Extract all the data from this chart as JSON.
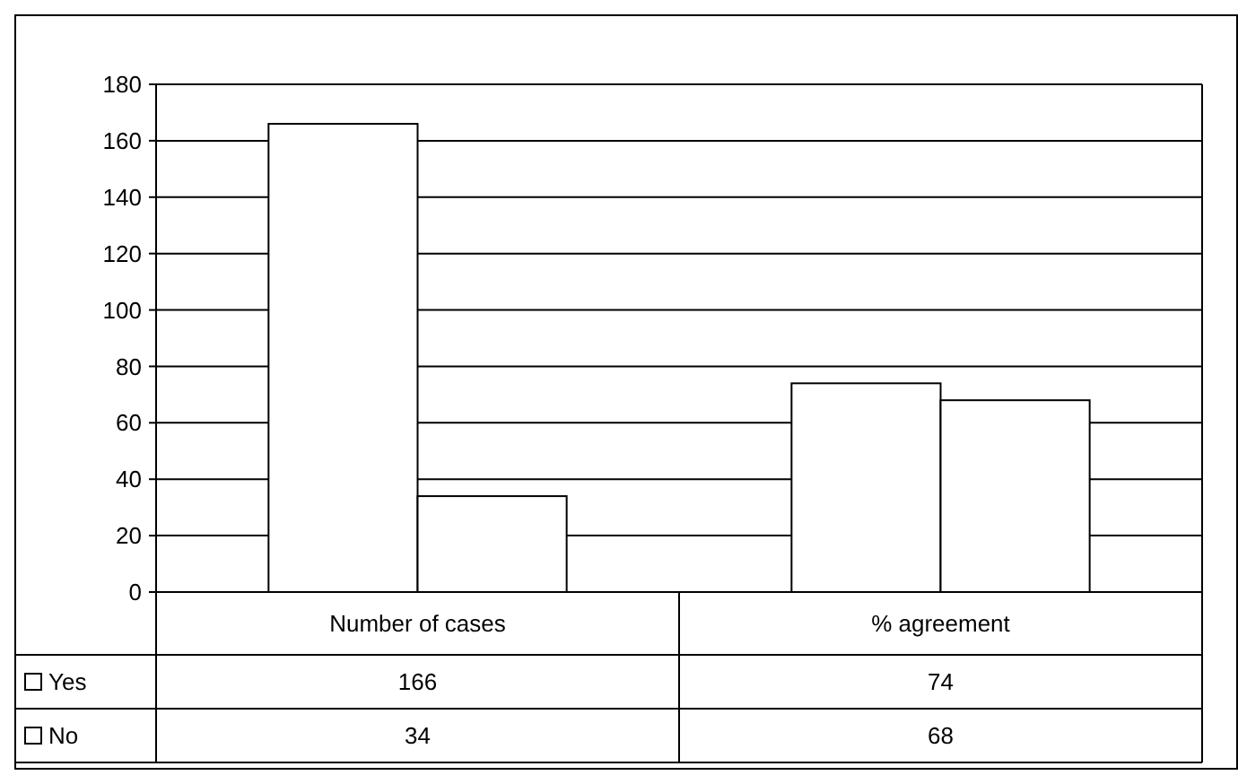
{
  "chart_data": {
    "type": "bar",
    "categories": [
      "Number of cases",
      "% agreement"
    ],
    "series": [
      {
        "name": "Yes",
        "color": "#ffffff",
        "values": [
          166,
          74
        ]
      },
      {
        "name": "No",
        "color": "#ffffff",
        "values": [
          34,
          68
        ]
      }
    ],
    "ylim": [
      0,
      180
    ],
    "yticks": [
      0,
      20,
      40,
      60,
      80,
      100,
      120,
      140,
      160,
      180
    ],
    "grid": "y",
    "data_labels": true,
    "legend": "bottom"
  }
}
